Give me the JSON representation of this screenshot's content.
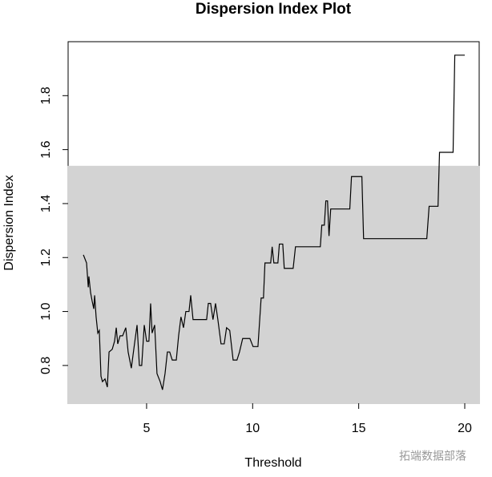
{
  "chart_data": {
    "type": "line",
    "title": "Dispersion Index Plot",
    "xlabel": "Threshold",
    "ylabel": "Dispersion Index",
    "watermark": "拓端数据部落",
    "x": [
      2.02,
      2.17,
      2.25,
      2.28,
      2.36,
      2.43,
      2.51,
      2.55,
      2.62,
      2.7,
      2.77,
      2.85,
      2.92,
      3.04,
      3.15,
      3.23,
      3.38,
      3.49,
      3.57,
      3.64,
      3.75,
      3.87,
      4.02,
      4.13,
      4.28,
      4.43,
      4.55,
      4.66,
      4.77,
      4.89,
      5.0,
      5.11,
      5.19,
      5.26,
      5.38,
      5.49,
      5.64,
      5.75,
      5.87,
      5.98,
      6.09,
      6.21,
      6.4,
      6.51,
      6.62,
      6.74,
      6.85,
      7.0,
      7.08,
      7.19,
      7.53,
      7.83,
      7.91,
      8.02,
      8.13,
      8.25,
      8.36,
      8.51,
      8.66,
      8.77,
      8.92,
      9.08,
      9.26,
      9.38,
      9.53,
      9.87,
      10.02,
      10.25,
      10.4,
      10.51,
      10.58,
      10.85,
      10.92,
      11.0,
      11.19,
      11.26,
      11.42,
      11.49,
      11.91,
      12.02,
      13.19,
      13.26,
      13.38,
      13.45,
      13.53,
      13.6,
      13.68,
      14.58,
      14.66,
      15.15,
      15.23,
      18.21,
      18.32,
      18.74,
      18.81,
      19.45,
      19.53,
      20.0
    ],
    "values": [
      1.21,
      1.18,
      1.09,
      1.13,
      1.07,
      1.04,
      1.01,
      1.06,
      0.98,
      0.92,
      0.93,
      0.76,
      0.74,
      0.75,
      0.72,
      0.85,
      0.86,
      0.89,
      0.94,
      0.88,
      0.91,
      0.91,
      0.94,
      0.85,
      0.79,
      0.88,
      0.95,
      0.8,
      0.8,
      0.95,
      0.89,
      0.89,
      1.03,
      0.92,
      0.95,
      0.77,
      0.74,
      0.71,
      0.77,
      0.85,
      0.85,
      0.82,
      0.82,
      0.91,
      0.98,
      0.94,
      1.0,
      1.0,
      1.06,
      0.97,
      0.97,
      0.97,
      1.03,
      1.03,
      0.97,
      1.03,
      0.97,
      0.88,
      0.88,
      0.94,
      0.93,
      0.82,
      0.82,
      0.85,
      0.9,
      0.9,
      0.87,
      0.87,
      1.05,
      1.05,
      1.18,
      1.18,
      1.24,
      1.18,
      1.18,
      1.25,
      1.25,
      1.16,
      1.16,
      1.24,
      1.24,
      1.32,
      1.32,
      1.41,
      1.41,
      1.28,
      1.38,
      1.38,
      1.5,
      1.5,
      1.27,
      1.27,
      1.39,
      1.39,
      1.59,
      1.59,
      1.95,
      1.95
    ],
    "color": "#000000",
    "shade_below": 1.54,
    "shade_color": "#d3d3d3",
    "xlim": [
      1.3,
      20.68
    ],
    "ylim": [
      0.66,
      2.0
    ],
    "xticks": [
      5,
      10,
      15,
      20
    ],
    "yticks": [
      {
        "value": 0.8,
        "label": "0.8"
      },
      {
        "value": 1.0,
        "label": "1.0"
      },
      {
        "value": 1.2,
        "label": "1.2"
      },
      {
        "value": 1.4,
        "label": "1.4"
      },
      {
        "value": 1.6,
        "label": "1.6"
      },
      {
        "value": 1.8,
        "label": "1.8"
      }
    ]
  }
}
